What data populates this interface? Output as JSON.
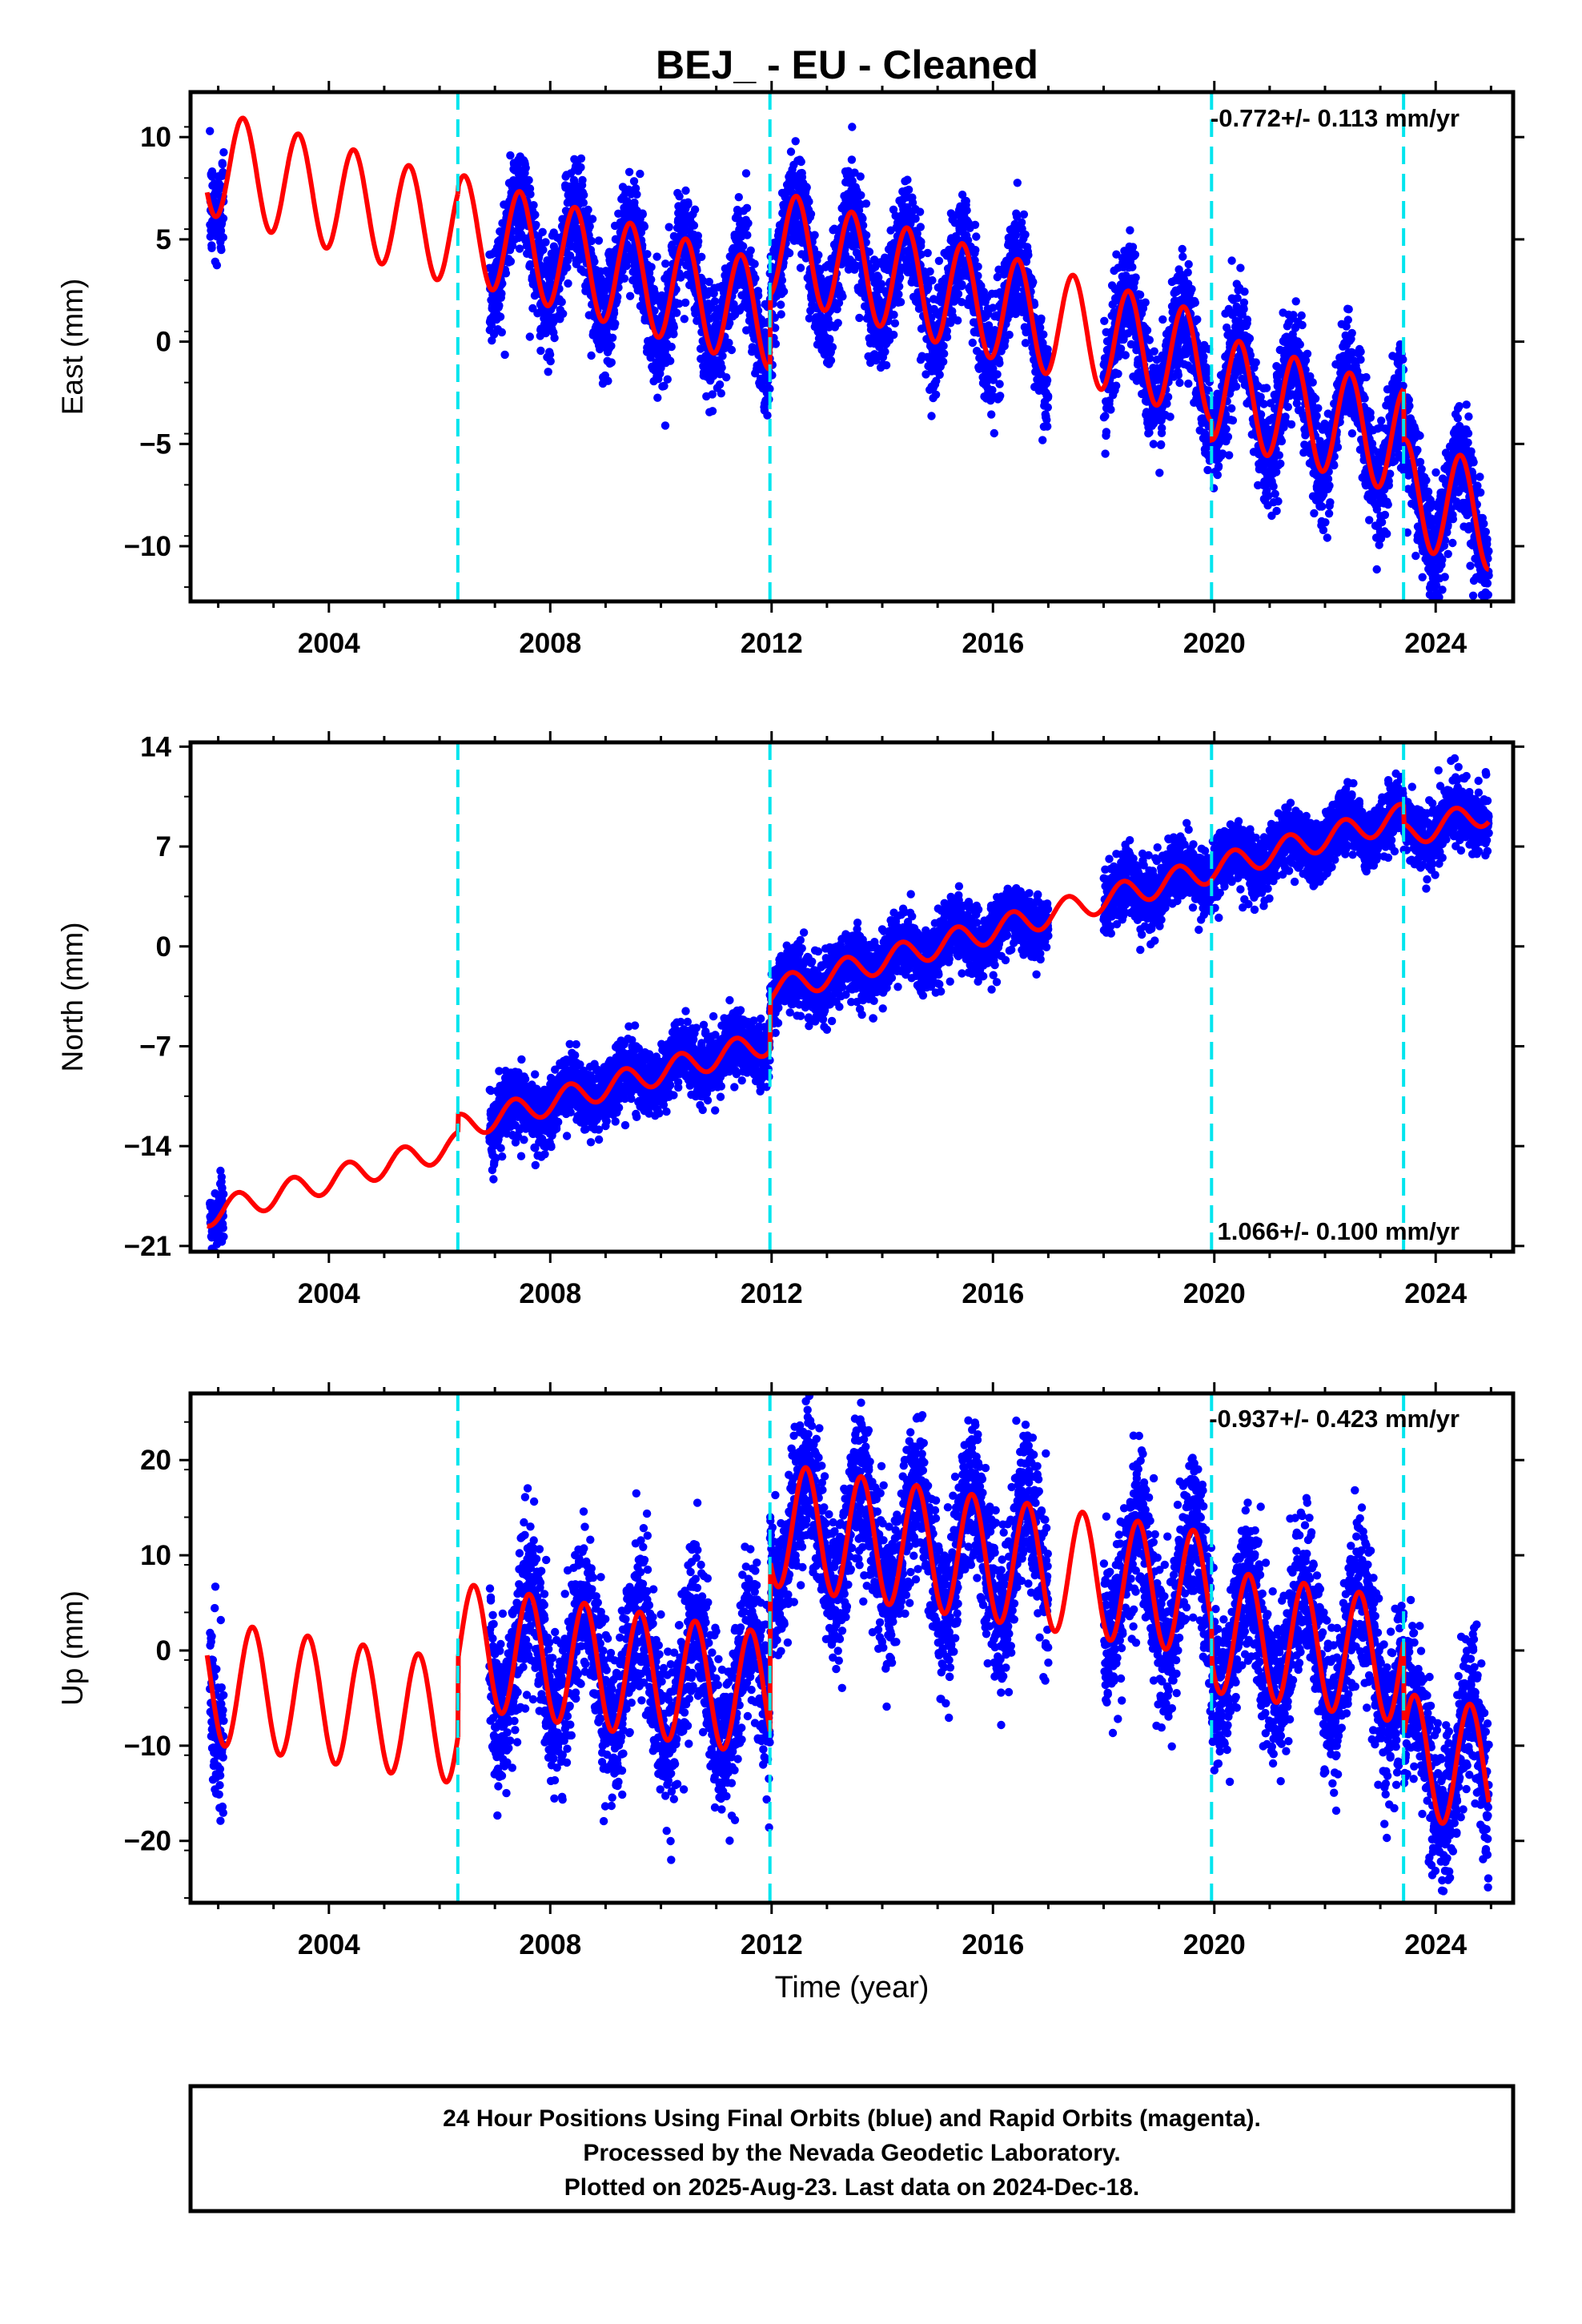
{
  "title": "BEJ_  - EU - Cleaned",
  "xlabel": "Time (year)",
  "footer": {
    "lines": [
      "24 Hour Positions Using Final Orbits (blue) and Rapid Orbits (magenta).",
      "Processed by the Nevada Geodetic Laboratory.",
      "Plotted on 2025-Aug-23. Last data on 2024-Dec-18."
    ]
  },
  "colors": {
    "final_orbits": "#0000ff",
    "model": "#ff0000",
    "step_lines": "#00e5ee",
    "axes": "#000000"
  },
  "chart_data": [
    {
      "type": "scatter",
      "component": "east",
      "ylabel": "East (mm)",
      "rate_label": "-0.772+/- 0.113 mm/yr",
      "rate_position": "top-right",
      "xlim": [
        2001.5,
        2025.4
      ],
      "ylim": [
        -12.7,
        12.2
      ],
      "xticks": [
        2004,
        2008,
        2012,
        2016,
        2020,
        2024
      ],
      "yticks": [
        10,
        5,
        0,
        -5,
        -10
      ],
      "yticklabels": [
        "10",
        "5",
        "0",
        "−5",
        "−10"
      ],
      "step_dates": [
        2006.33,
        2011.97,
        2019.95,
        2023.42
      ],
      "model": {
        "rate_mm_per_yr": -0.772,
        "annual_amplitude_mm": 2.6,
        "annual_phase_peak_year_fraction": 0.45,
        "segments": [
          {
            "t0": 2001.8,
            "t1": 2006.33,
            "value_at_2001_8": 7.3
          },
          {
            "t0": 2006.33,
            "t1": 2011.97,
            "value_at_2006_33": 7.5
          },
          {
            "t0": 2011.97,
            "t1": 2019.95,
            "value_at_2011_97": 2.3
          },
          {
            "t0": 2019.95,
            "t1": 2023.42,
            "value_at_2019_95": -4.8
          },
          {
            "t0": 2023.42,
            "t1": 2024.96,
            "value_at_2023_42": -4.8
          }
        ]
      },
      "data_coverage": [
        [
          2001.85,
          2002.1
        ],
        [
          2006.9,
          2017.0
        ],
        [
          2018.0,
          2024.96
        ]
      ],
      "scatter_sigma_mm": 1.3
    },
    {
      "type": "scatter",
      "component": "north",
      "ylabel": "North (mm)",
      "rate_label": "1.066+/- 0.100 mm/yr",
      "rate_position": "bottom-right",
      "xlim": [
        2001.5,
        2025.4
      ],
      "ylim": [
        -21.4,
        14.3
      ],
      "xticks": [
        2004,
        2008,
        2012,
        2016,
        2020,
        2024
      ],
      "yticks": [
        14,
        7,
        0,
        -7,
        -14,
        -21
      ],
      "yticklabels": [
        "14",
        "7",
        "0",
        "−7",
        "−14",
        "−21"
      ],
      "step_dates": [
        2006.33,
        2011.97,
        2019.95,
        2023.42
      ],
      "model": {
        "rate_mm_per_yr": 1.066,
        "annual_amplitude_mm": 0.9,
        "annual_phase_peak_year_fraction": 0.35,
        "segments": [
          {
            "t0": 2001.8,
            "t1": 2006.33,
            "value_at_2001_8": -19.6
          },
          {
            "t0": 2006.33,
            "t1": 2011.97,
            "value_at_2006_33": -11.8
          },
          {
            "t0": 2011.97,
            "t1": 2019.95,
            "value_at_2011_97": -3.8
          },
          {
            "t0": 2019.95,
            "t1": 2023.42,
            "value_at_2019_95": 4.7
          },
          {
            "t0": 2023.42,
            "t1": 2024.96,
            "value_at_2023_42": 8.6
          }
        ]
      },
      "data_coverage": [
        [
          2001.85,
          2002.1
        ],
        [
          2006.9,
          2017.0
        ],
        [
          2018.0,
          2024.96
        ]
      ],
      "scatter_sigma_mm": 1.1
    },
    {
      "type": "scatter",
      "component": "up",
      "ylabel": "Up (mm)",
      "rate_label": "-0.937+/- 0.423 mm/yr",
      "rate_position": "top-right",
      "xlim": [
        2001.5,
        2025.4
      ],
      "ylim": [
        -26.5,
        27.0
      ],
      "xticks": [
        2004,
        2008,
        2012,
        2016,
        2020,
        2024
      ],
      "yticks": [
        20,
        10,
        0,
        -10,
        -20
      ],
      "yticklabels": [
        "20",
        "10",
        "0",
        "−10",
        "−20"
      ],
      "step_dates": [
        2006.33,
        2011.97,
        2019.95,
        2023.42
      ],
      "model": {
        "rate_mm_per_yr": -0.937,
        "annual_amplitude_mm": 6.5,
        "annual_phase_peak_year_fraction": 0.62,
        "segments": [
          {
            "t0": 2001.8,
            "t1": 2006.33,
            "value_at_2001_8": -0.5
          },
          {
            "t0": 2006.33,
            "t1": 2011.97,
            "value_at_2006_33": -1.0
          },
          {
            "t0": 2011.97,
            "t1": 2019.95,
            "value_at_2011_97": 9.5
          },
          {
            "t0": 2019.95,
            "t1": 2023.42,
            "value_at_2019_95": -1.0
          },
          {
            "t0": 2023.42,
            "t1": 2024.96,
            "value_at_2023_42": -9.0
          }
        ]
      },
      "data_coverage": [
        [
          2001.85,
          2002.1
        ],
        [
          2006.9,
          2017.0
        ],
        [
          2018.0,
          2024.96
        ]
      ],
      "scatter_sigma_mm": 4.0
    }
  ]
}
